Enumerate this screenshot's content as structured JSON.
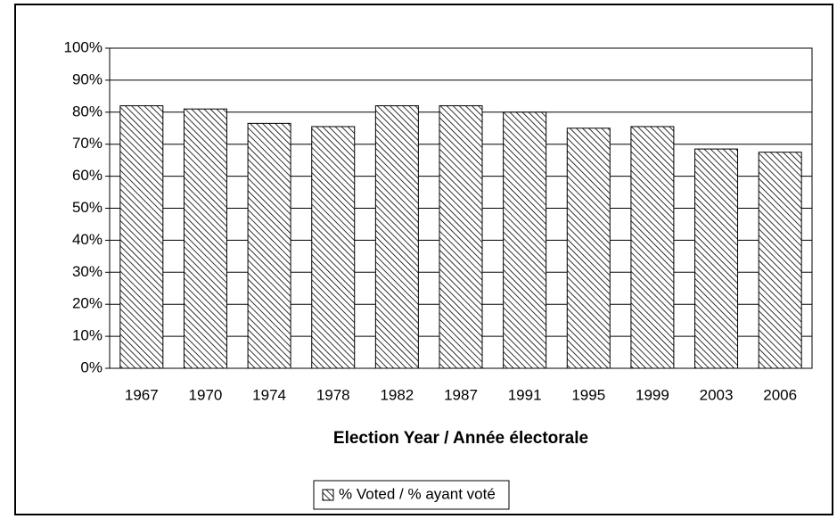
{
  "chart_data": {
    "type": "bar",
    "x_label": "Election Year / Année électorale",
    "categories": [
      "1967",
      "1970",
      "1974",
      "1978",
      "1982",
      "1987",
      "1991",
      "1995",
      "1999",
      "2003",
      "2006"
    ],
    "series": [
      {
        "name": "% Voted / % ayant voté",
        "color": "#000000",
        "values": [
          82,
          81,
          76.5,
          75.5,
          82,
          82,
          80,
          75,
          75.5,
          68.5,
          67.5
        ]
      }
    ],
    "ylim": [
      0,
      100
    ],
    "yticks": [
      {
        "value": 0,
        "label": "0%"
      },
      {
        "value": 10,
        "label": "10%"
      },
      {
        "value": 20,
        "label": "20%"
      },
      {
        "value": 30,
        "label": "30%"
      },
      {
        "value": 40,
        "label": "40%"
      },
      {
        "value": 50,
        "label": "50%"
      },
      {
        "value": 60,
        "label": "60%"
      },
      {
        "value": 70,
        "label": "70%"
      },
      {
        "value": 80,
        "label": "80%"
      },
      {
        "value": 90,
        "label": "90%"
      },
      {
        "value": 100,
        "label": "100%"
      }
    ],
    "grid": true
  }
}
